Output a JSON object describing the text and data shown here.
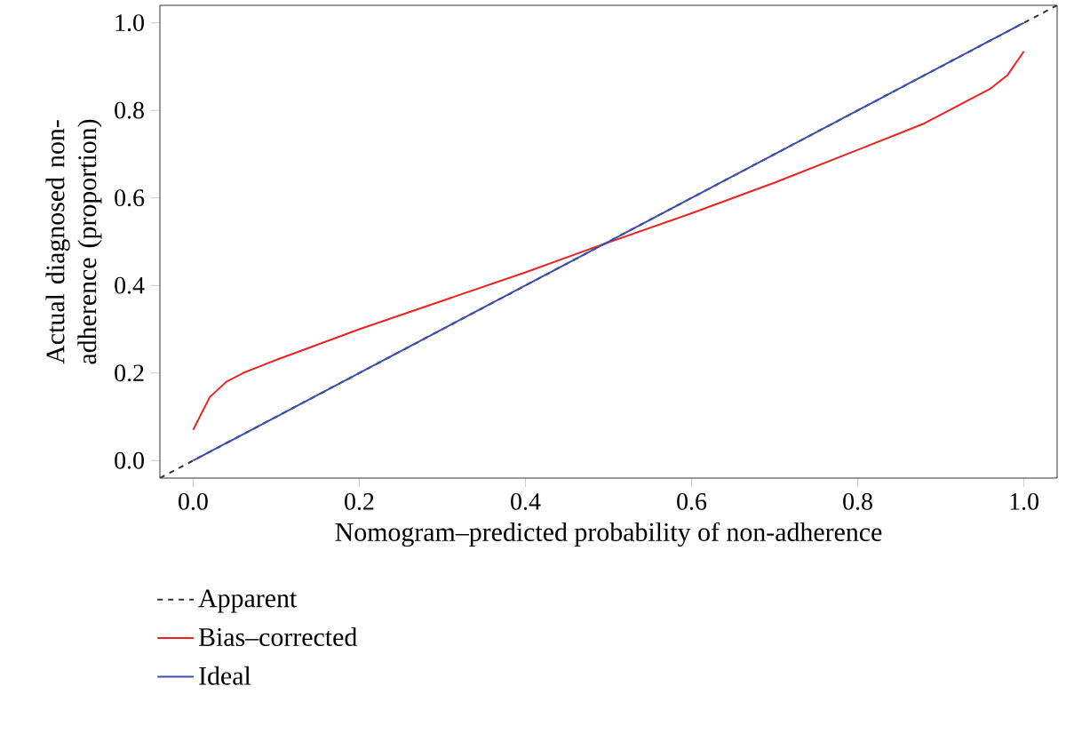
{
  "chart_data": {
    "type": "line",
    "xlabel": "Nomogram–predicted probability of non-adherence",
    "ylabel": "Actual diagnosed non-adherence (proportion)",
    "xlim": [
      -0.04,
      1.04
    ],
    "ylim": [
      -0.04,
      1.04
    ],
    "xticks": [
      {
        "value": 0,
        "label": "0.0"
      },
      {
        "value": 0.2,
        "label": "0.2"
      },
      {
        "value": 0.4,
        "label": "0.4"
      },
      {
        "value": 0.6,
        "label": "0.6"
      },
      {
        "value": 0.8,
        "label": "0.8"
      },
      {
        "value": 1,
        "label": "1.0"
      }
    ],
    "yticks": [
      {
        "value": 0,
        "label": "0.0"
      },
      {
        "value": 0.2,
        "label": "0.2"
      },
      {
        "value": 0.4,
        "label": "0.4"
      },
      {
        "value": 0.6,
        "label": "0.6"
      },
      {
        "value": 0.8,
        "label": "0.8"
      },
      {
        "value": 1,
        "label": "1.0"
      }
    ],
    "legend": "bottom",
    "series": [
      {
        "name": "Apparent",
        "color": "#333333",
        "line_style": "dashed",
        "x": [
          -0.04,
          1.04
        ],
        "values": [
          -0.04,
          1.04
        ]
      },
      {
        "name": "Bias–corrected",
        "color": "#ee2222",
        "line_style": "solid",
        "x": [
          0,
          0.02,
          0.04,
          0.06,
          0.08,
          0.1,
          0.2,
          0.3,
          0.4,
          0.48,
          0.6,
          0.7,
          0.8,
          0.88,
          0.92,
          0.96,
          0.98,
          1.0
        ],
        "values": [
          0.07,
          0.145,
          0.18,
          0.2,
          0.215,
          0.23,
          0.3,
          0.365,
          0.43,
          0.485,
          0.565,
          0.635,
          0.71,
          0.77,
          0.81,
          0.85,
          0.88,
          0.935
        ]
      },
      {
        "name": "Ideal",
        "color": "#3a4fb0",
        "line_style": "solid",
        "x": [
          0,
          1
        ],
        "values": [
          0,
          1
        ]
      }
    ]
  }
}
